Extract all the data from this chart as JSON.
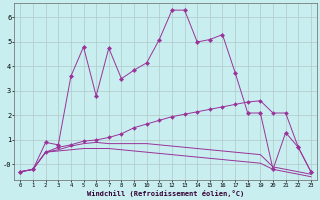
{
  "xlabel": "Windchill (Refroidissement éolien,°C)",
  "background_color": "#c8eef0",
  "grid_color": "#b0c8c8",
  "line_color": "#993399",
  "xlim": [
    -0.5,
    23.5
  ],
  "ylim": [
    -0.65,
    6.6
  ],
  "xticks": [
    0,
    1,
    2,
    3,
    4,
    5,
    6,
    7,
    8,
    9,
    10,
    11,
    12,
    13,
    14,
    15,
    16,
    17,
    18,
    19,
    20,
    21,
    22,
    23
  ],
  "yticks": [
    0,
    1,
    2,
    3,
    4,
    5,
    6
  ],
  "ytick_labels": [
    "-0",
    "1",
    "2",
    "3",
    "4",
    "5",
    "6"
  ],
  "line1_x": [
    0,
    1,
    2,
    3,
    4,
    5,
    6,
    7,
    8,
    9,
    10,
    11,
    12,
    13,
    14,
    15,
    16,
    17,
    18,
    19,
    20,
    21,
    22,
    23
  ],
  "line1_y": [
    -0.3,
    -0.2,
    0.9,
    0.8,
    3.6,
    4.8,
    2.8,
    4.75,
    3.5,
    3.85,
    4.15,
    5.1,
    6.3,
    6.3,
    5.0,
    5.1,
    5.3,
    3.75,
    2.1,
    2.1,
    -0.2,
    1.3,
    0.7,
    -0.3
  ],
  "line2_x": [
    0,
    1,
    2,
    3,
    4,
    5,
    6,
    7,
    8,
    9,
    10,
    11,
    12,
    13,
    14,
    15,
    16,
    17,
    18,
    19,
    20,
    21,
    22,
    23
  ],
  "line2_y": [
    -0.3,
    -0.2,
    0.5,
    0.7,
    0.8,
    0.95,
    1.0,
    1.1,
    1.25,
    1.5,
    1.65,
    1.8,
    1.95,
    2.05,
    2.15,
    2.25,
    2.35,
    2.45,
    2.55,
    2.6,
    2.1,
    2.1,
    0.7,
    -0.3
  ],
  "line3_x": [
    0,
    1,
    2,
    3,
    4,
    5,
    6,
    7,
    8,
    9,
    10,
    11,
    12,
    13,
    14,
    15,
    16,
    17,
    18,
    19,
    20,
    21,
    22,
    23
  ],
  "line3_y": [
    -0.3,
    -0.2,
    0.5,
    0.6,
    0.75,
    0.85,
    0.9,
    0.85,
    0.85,
    0.85,
    0.85,
    0.8,
    0.75,
    0.7,
    0.65,
    0.6,
    0.55,
    0.5,
    0.45,
    0.4,
    -0.1,
    -0.2,
    -0.3,
    -0.4
  ],
  "line4_x": [
    0,
    1,
    2,
    3,
    4,
    5,
    6,
    7,
    8,
    9,
    10,
    11,
    12,
    13,
    14,
    15,
    16,
    17,
    18,
    19,
    20,
    21,
    22,
    23
  ],
  "line4_y": [
    -0.3,
    -0.2,
    0.5,
    0.55,
    0.6,
    0.65,
    0.65,
    0.65,
    0.6,
    0.55,
    0.5,
    0.45,
    0.4,
    0.35,
    0.3,
    0.25,
    0.2,
    0.15,
    0.1,
    0.05,
    -0.2,
    -0.3,
    -0.4,
    -0.5
  ]
}
